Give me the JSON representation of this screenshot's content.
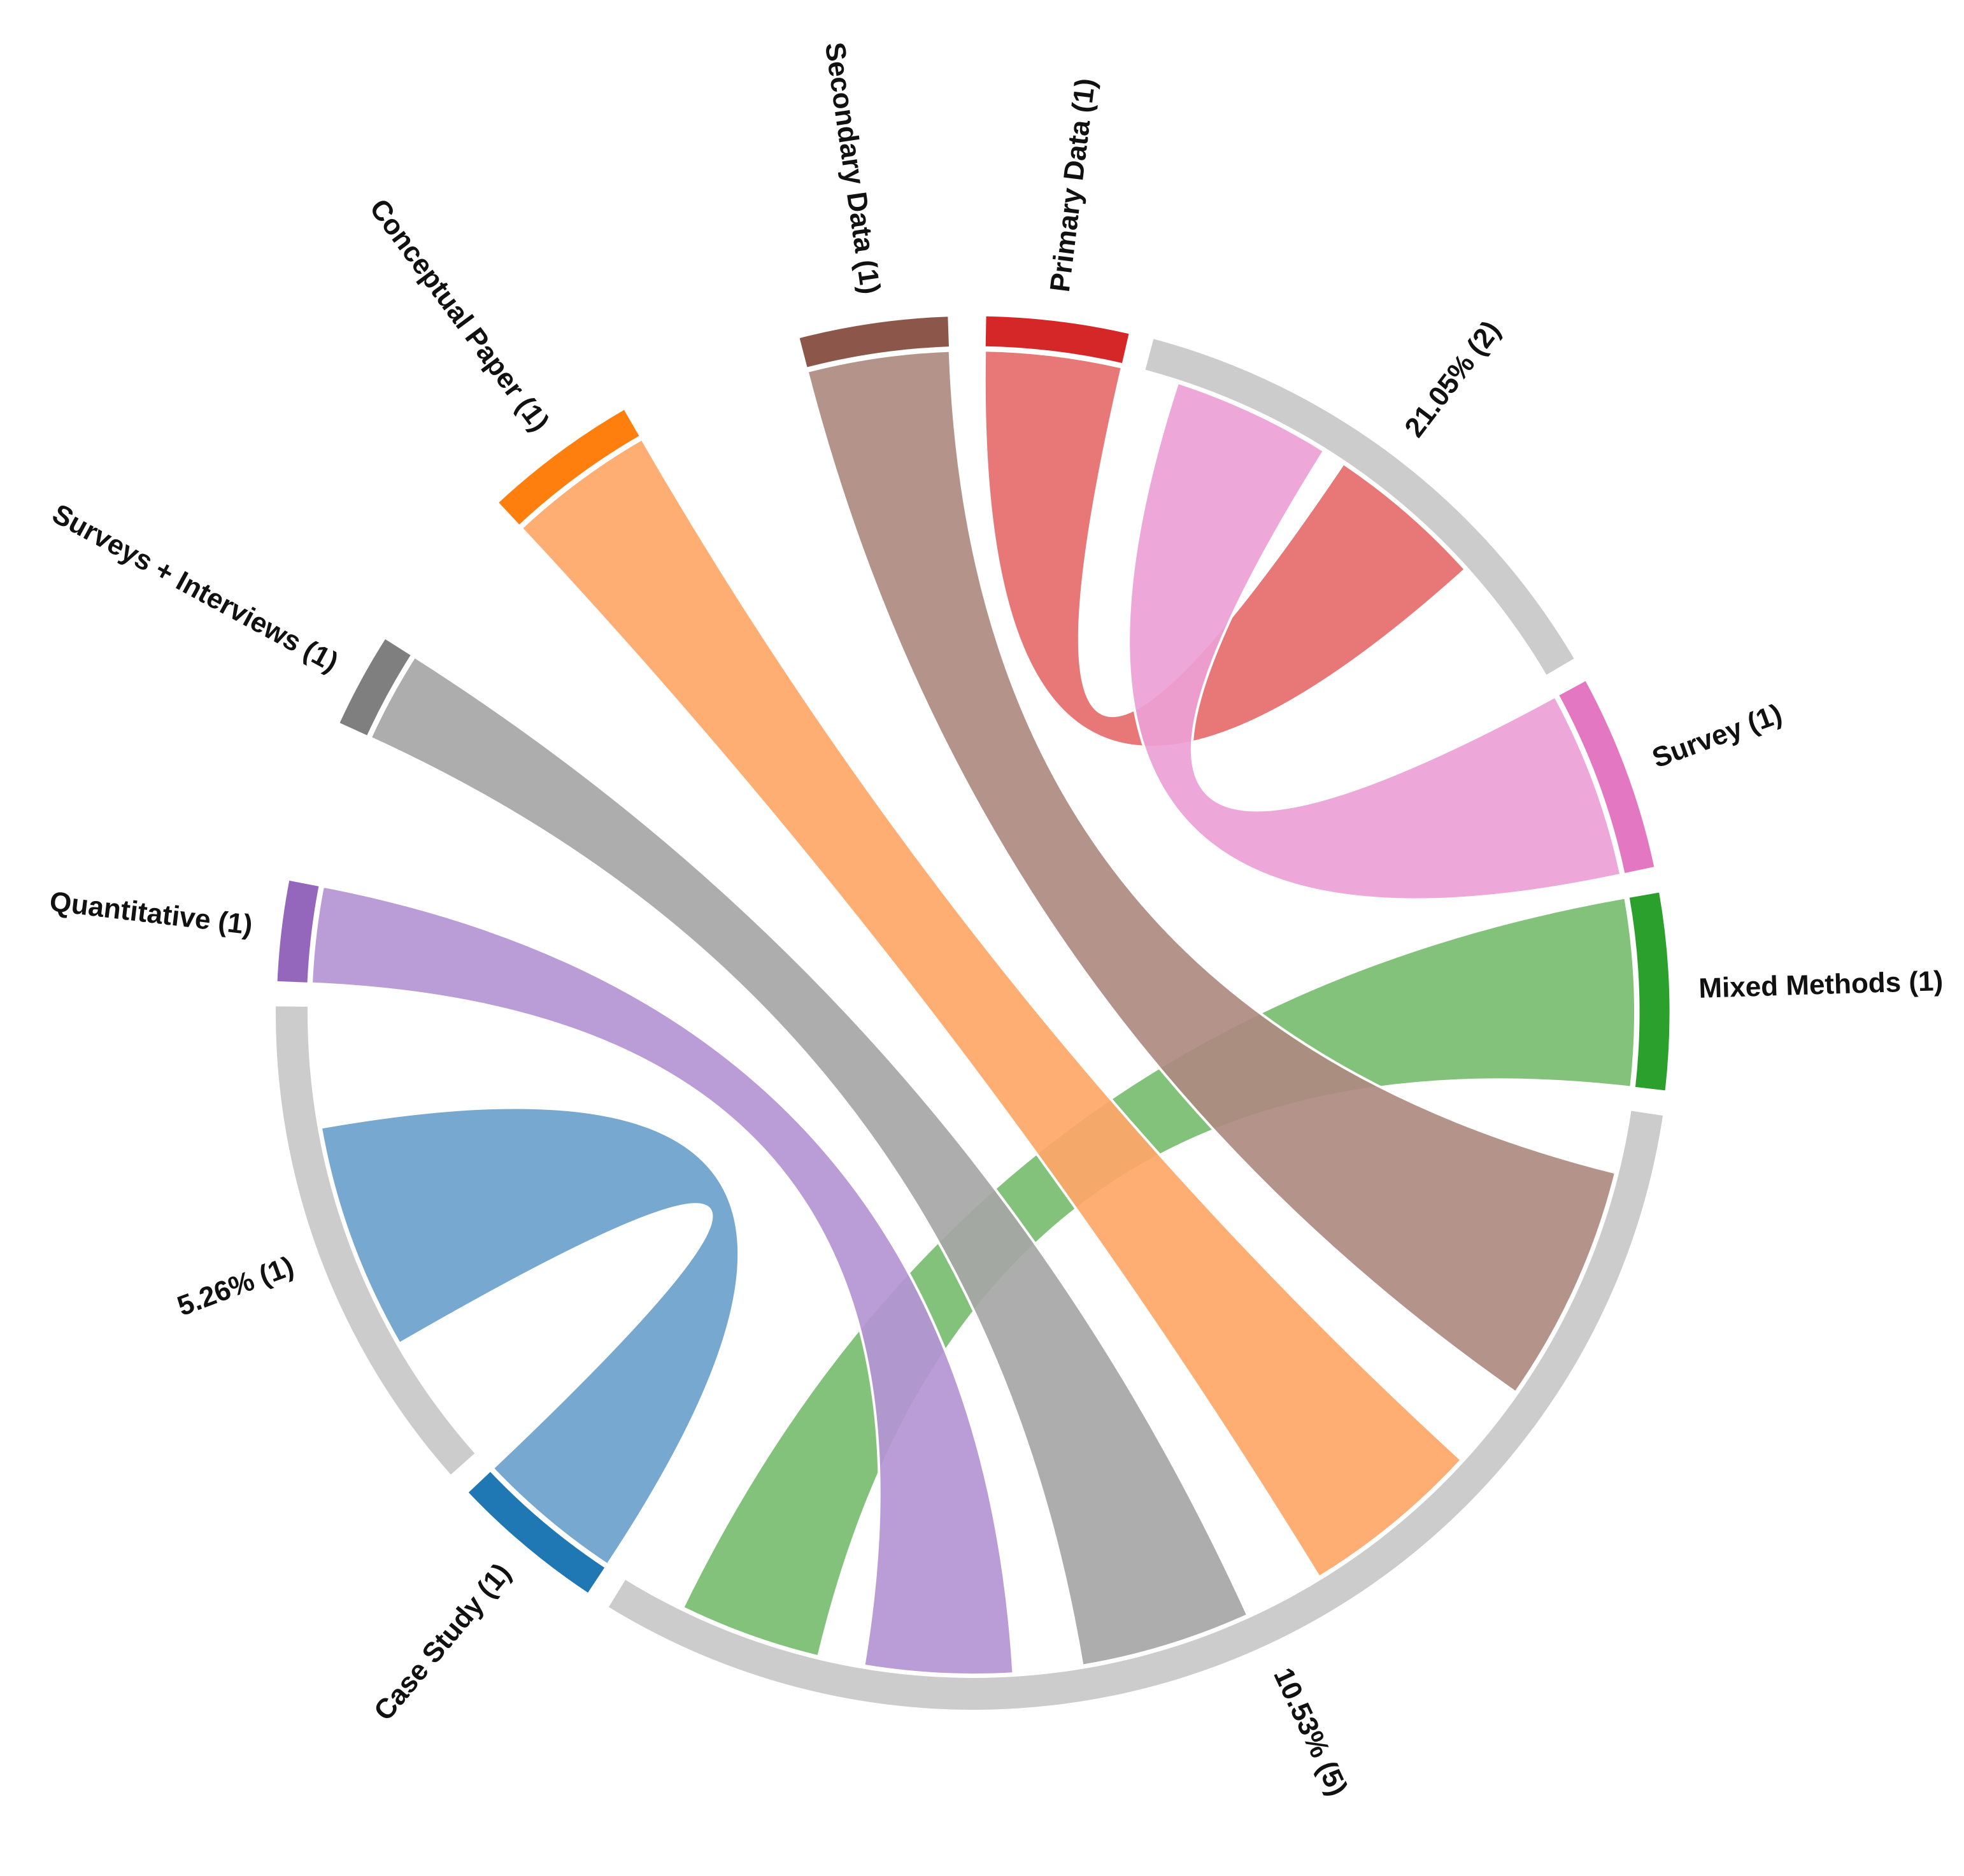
{
  "chart_data": {
    "type": "chord",
    "title": "",
    "segments": [
      {
        "label": "Primary Data (1)",
        "color": "#d62728",
        "ribbon_color": "#e66b6b"
      },
      {
        "label": "Survey (1)",
        "color": "#e377c2",
        "ribbon_color": "#ec9fd5"
      },
      {
        "label": "Mixed Methods (1)",
        "color": "#2ca02c",
        "ribbon_color": "#77bd6f"
      },
      {
        "label": "Case Study (1)",
        "color": "#1f77b4",
        "ribbon_color": "#6aa1cc"
      },
      {
        "label": "Quantitative (1)",
        "color": "#9467bd",
        "ribbon_color": "#b494d4"
      },
      {
        "label": "Surveys + Interviews (1)",
        "color": "#7f7f7f",
        "ribbon_color": "#a6a6a6"
      },
      {
        "label": "Conceptual Paper (1)",
        "color": "#ff7f0e",
        "ribbon_color": "#fea667"
      },
      {
        "label": "Secondary Data (1)",
        "color": "#8c564b",
        "ribbon_color": "#ae8a80"
      }
    ],
    "groups": [
      {
        "label": "21.05% (2)",
        "percent": 21.05,
        "count": 2,
        "color": "#cccccc"
      },
      {
        "label": "10.53% (5)",
        "percent": 10.53,
        "count": 5,
        "color": "#cccccc"
      },
      {
        "label": "5.26% (1)",
        "percent": 5.26,
        "count": 1,
        "color": "#cccccc"
      }
    ],
    "links": [
      {
        "source": "Primary Data (1)",
        "target": "21.05% (2)",
        "value": 1
      },
      {
        "source": "Survey (1)",
        "target": "21.05% (2)",
        "value": 1
      },
      {
        "source": "Mixed Methods (1)",
        "target": "10.53% (5)",
        "value": 1
      },
      {
        "source": "Quantitative (1)",
        "target": "10.53% (5)",
        "value": 1
      },
      {
        "source": "Surveys + Interviews (1)",
        "target": "10.53% (5)",
        "value": 1
      },
      {
        "source": "Conceptual Paper (1)",
        "target": "10.53% (5)",
        "value": 1
      },
      {
        "source": "Secondary Data (1)",
        "target": "10.53% (5)",
        "value": 1
      },
      {
        "source": "Case Study (1)",
        "target": "5.26% (1)",
        "value": 1
      }
    ]
  }
}
